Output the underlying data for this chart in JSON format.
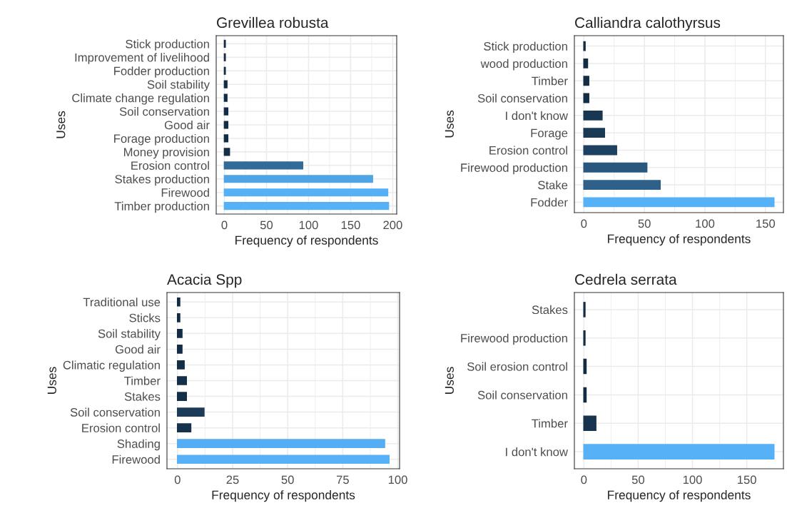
{
  "chart_data": [
    {
      "type": "bar",
      "orientation": "horizontal",
      "title": "Grevillea robusta",
      "xlabel": "Frequency of respondents",
      "ylabel": "Uses",
      "grid": true,
      "categories": [
        "Stick production",
        "Improvement of livelihood",
        "Fodder production",
        "Soil stability",
        "Climate change regulation",
        "Soil conservation",
        "Good air",
        "Forage production",
        "Money provision",
        "Erosion control",
        "Stakes production",
        "Firewood",
        "Timber production"
      ],
      "values": [
        1,
        1,
        1,
        3,
        3,
        4,
        4,
        4,
        6,
        93,
        176,
        194,
        195
      ],
      "colors": [
        "#132b43",
        "#132b43",
        "#132b43",
        "#142c45",
        "#142c45",
        "#142d46",
        "#142d46",
        "#142d46",
        "#152e48",
        "#336b98",
        "#4fa4e5",
        "#56b0f6",
        "#56b1f7"
      ],
      "xlim": [
        -9.75,
        204.75
      ],
      "xticks": [
        0,
        50,
        100,
        150,
        200
      ]
    },
    {
      "type": "bar",
      "orientation": "horizontal",
      "title": "Calliandra calothyrsus",
      "xlabel": "Frequency of respondents",
      "ylabel": "Uses",
      "grid": true,
      "categories": [
        "Stick production",
        "wood production",
        "Timber",
        "Soil conservation",
        "I don't know",
        "Forage",
        "Erosion control",
        "Firewood production",
        "Stake",
        "Fodder"
      ],
      "values": [
        1,
        3,
        4,
        4,
        15,
        17,
        27,
        52,
        63,
        157
      ],
      "colors": [
        "#132b43",
        "#142d45",
        "#142e46",
        "#142e46",
        "#193753",
        "#1a3955",
        "#1e4161",
        "#29577e",
        "#2e608a",
        "#56b1f7"
      ],
      "xlim": [
        -7.85,
        164.85
      ],
      "xticks": [
        0,
        50,
        100,
        150
      ]
    },
    {
      "type": "bar",
      "orientation": "horizontal",
      "title": "Acacia Spp",
      "xlabel": "Frequency of respondents",
      "ylabel": "Uses",
      "grid": true,
      "categories": [
        "Traditional use",
        "Sticks",
        "Soil stability",
        "Good air",
        "Climatic regulation",
        "Timber",
        "Stakes",
        "Soil conservation",
        "Erosion control",
        "Shading",
        "Firewood"
      ],
      "values": [
        1,
        1,
        2,
        2,
        3,
        4,
        4,
        12,
        6,
        94,
        96
      ],
      "colors": [
        "#132b43",
        "#132b43",
        "#142c45",
        "#142c45",
        "#142e47",
        "#152f49",
        "#152f49",
        "#1b3b58",
        "#17324c",
        "#55aef3",
        "#56b1f7"
      ],
      "xlim": [
        -4.8,
        100.8
      ],
      "xticks": [
        0,
        25,
        50,
        75,
        100
      ]
    },
    {
      "type": "bar",
      "orientation": "horizontal",
      "title": "Cedrela serrata",
      "xlabel": "Frequency of respondents",
      "ylabel": "Uses",
      "grid": true,
      "categories": [
        "Stakes",
        "Firewood production",
        "Soil erosion control",
        "Soil conservation",
        "Timber",
        "I don't know"
      ],
      "values": [
        1,
        1,
        2,
        2,
        11,
        175
      ],
      "colors": [
        "#132b43",
        "#132b43",
        "#132c44",
        "#132c44",
        "#17334d",
        "#56b1f7"
      ],
      "xlim": [
        -8.75,
        183.75
      ],
      "xticks": [
        0,
        50,
        100,
        150
      ]
    }
  ]
}
